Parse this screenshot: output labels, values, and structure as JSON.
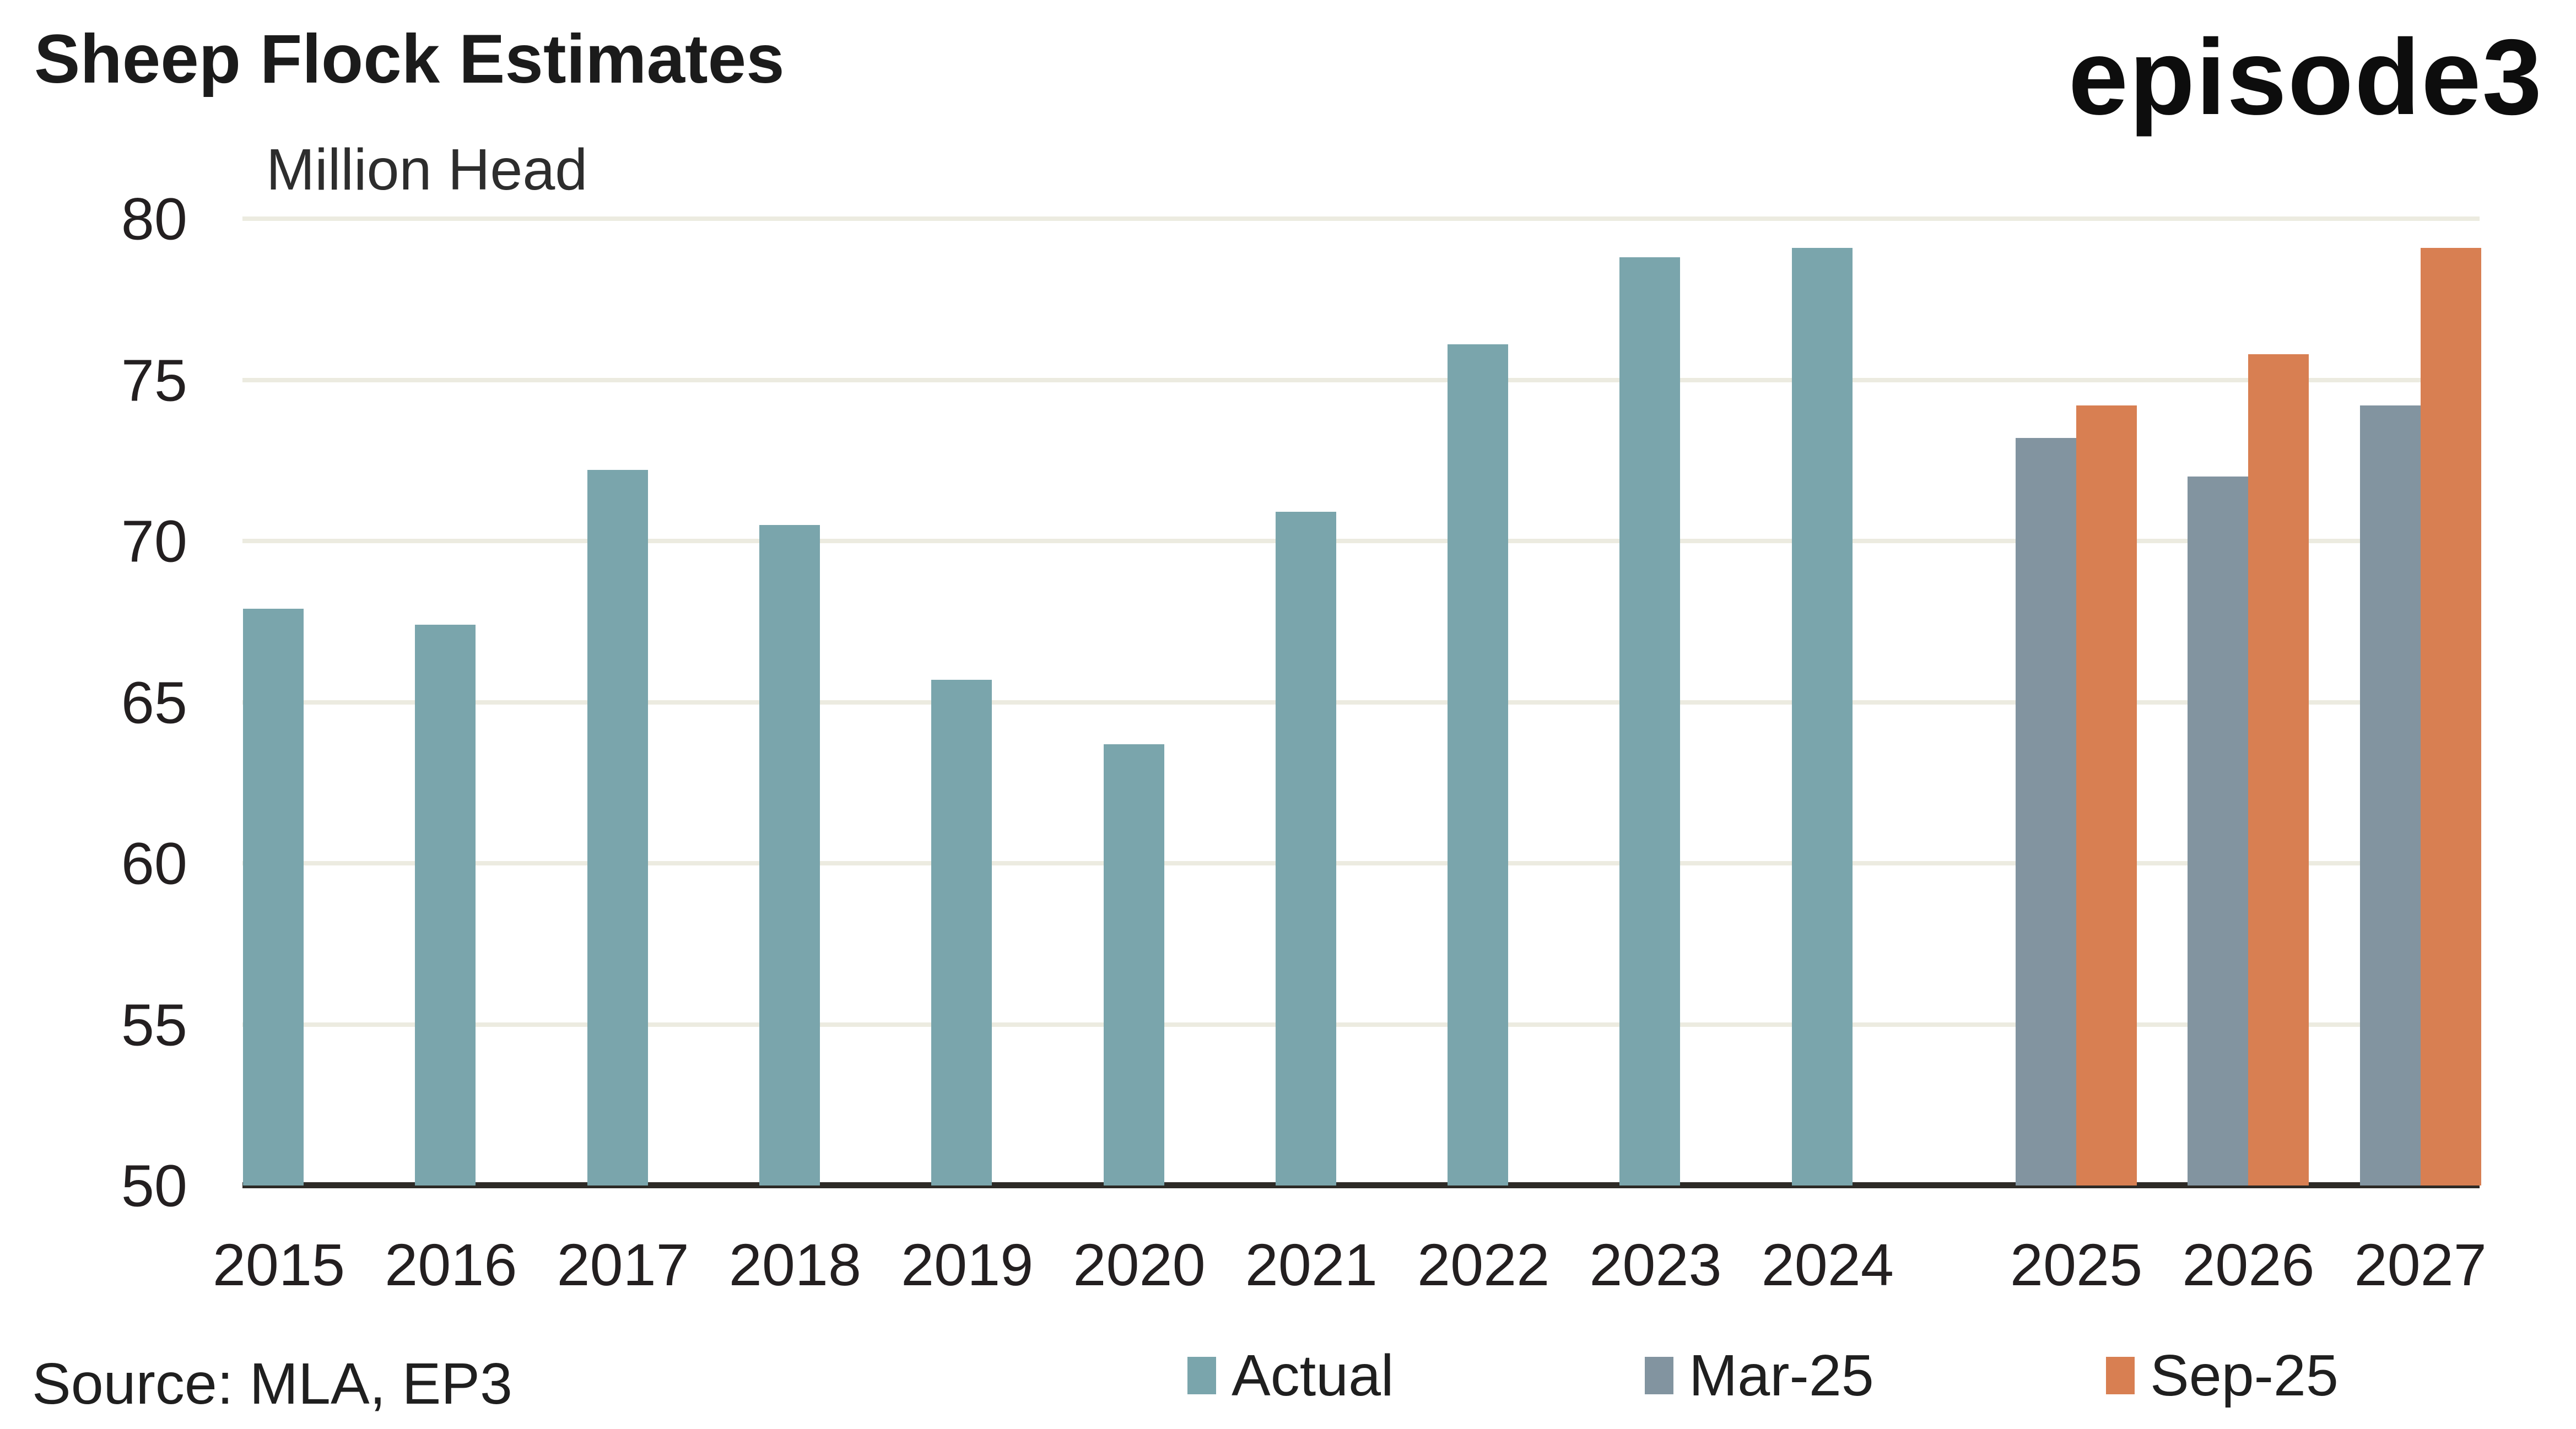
{
  "header": {
    "title": "Sheep Flock Estimates",
    "units_label": "Million Head",
    "logo_text": "episode3"
  },
  "source": {
    "label": "Source: MLA, EP3"
  },
  "colors": {
    "actual": "#7AA5AC",
    "mar25": "#8294A0",
    "sep25": "#D87F52",
    "gridline": "#ECEBE0",
    "axis_line": "#2D2A26",
    "text": "#231F20",
    "background": "#FFFFFF"
  },
  "chart_data": {
    "type": "bar",
    "title": "Sheep Flock Estimates",
    "ylabel": "Million Head",
    "ylim": [
      50,
      80
    ],
    "yticks": [
      50,
      55,
      60,
      65,
      70,
      75,
      80
    ],
    "grid": "horizontal",
    "legend_position": "bottom",
    "categories": [
      "2015",
      "2016",
      "2017",
      "2018",
      "2019",
      "2020",
      "2021",
      "2022",
      "2023",
      "2024",
      "2025",
      "2026",
      "2027"
    ],
    "series": [
      {
        "name": "Actual",
        "color": "#7AA5AC",
        "values": [
          67.9,
          67.4,
          72.2,
          70.5,
          65.7,
          63.7,
          70.9,
          76.1,
          78.8,
          79.1,
          null,
          null,
          null
        ]
      },
      {
        "name": "Mar-25",
        "color": "#8294A0",
        "values": [
          null,
          null,
          null,
          null,
          null,
          null,
          null,
          null,
          null,
          null,
          73.2,
          72.0,
          74.2
        ]
      },
      {
        "name": "Sep-25",
        "color": "#D87F52",
        "values": [
          null,
          null,
          null,
          null,
          null,
          null,
          null,
          null,
          null,
          null,
          74.2,
          75.8,
          79.1
        ]
      }
    ]
  }
}
